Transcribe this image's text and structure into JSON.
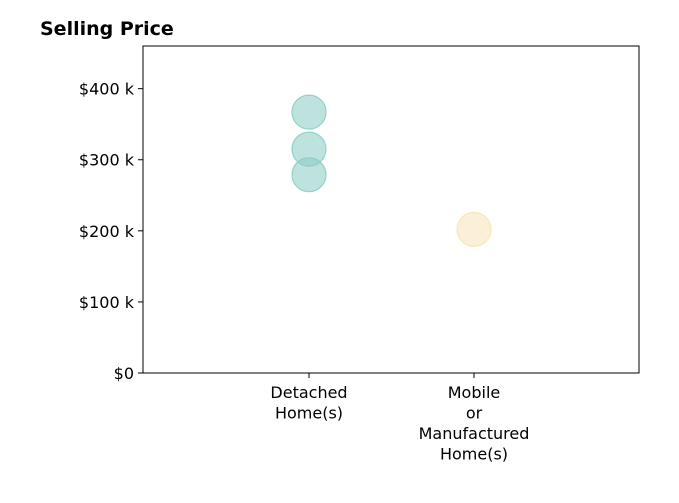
{
  "chart_data": {
    "type": "scatter",
    "title": "Selling Price",
    "xlabel": "",
    "ylabel": "",
    "categories": [
      [
        "Detached",
        "Home(s)"
      ],
      [
        "Mobile",
        "or",
        "Manufactured",
        "Home(s)"
      ]
    ],
    "ylim": [
      0,
      460000
    ],
    "y_ticks": [
      {
        "value": 0,
        "label": "$0"
      },
      {
        "value": 100000,
        "label": "$100 k"
      },
      {
        "value": 200000,
        "label": "$200 k"
      },
      {
        "value": 300000,
        "label": "$300 k"
      },
      {
        "value": 400000,
        "label": "$400 k"
      }
    ],
    "points": [
      {
        "category": 0,
        "value": 367000,
        "color": "#88cbc2"
      },
      {
        "category": 0,
        "value": 315000,
        "color": "#88cbc2"
      },
      {
        "category": 0,
        "value": 279000,
        "color": "#88cbc2"
      },
      {
        "category": 1,
        "value": 202000,
        "color": "#f8e3b6"
      }
    ],
    "grid": false,
    "legend": "none"
  }
}
